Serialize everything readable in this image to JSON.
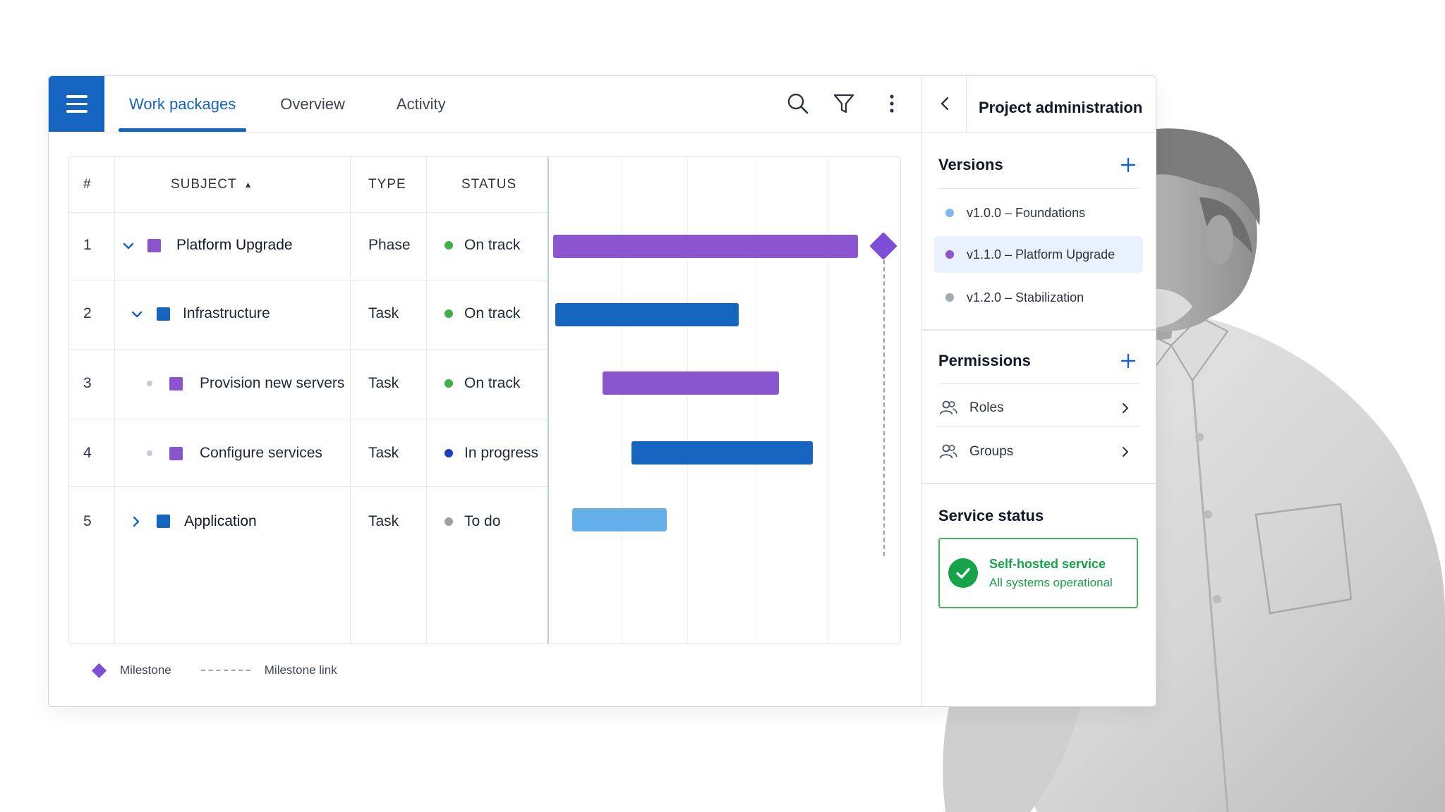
{
  "header": {
    "tabs": [
      {
        "label": "Work packages",
        "active": true
      },
      {
        "label": "Overview",
        "active": false
      },
      {
        "label": "Activity",
        "active": false
      }
    ]
  },
  "table": {
    "columns": {
      "num": "#",
      "subject": "SUBJECT",
      "sort_indicator": "▲",
      "type": "TYPE",
      "status": "STATUS"
    },
    "rows": [
      {
        "num": "1",
        "subject": "Platform Upgrade",
        "type": "Phase",
        "status": "On track",
        "status_color": "#3fb04a",
        "color": "#8a55cf",
        "expander": "expanded"
      },
      {
        "num": "2",
        "subject": "Infrastructure",
        "type": "Task",
        "status": "On track",
        "status_color": "#3fb04a",
        "color": "#1565c0",
        "expander": "expanded"
      },
      {
        "num": "3",
        "subject": "Provision new servers",
        "type": "Task",
        "status": "On track",
        "status_color": "#3fb04a",
        "color": "#8a55cf",
        "expander": "leaf"
      },
      {
        "num": "4",
        "subject": "Configure services",
        "type": "Task",
        "status": "In progress",
        "status_color": "#1a3fbf",
        "color": "#8a55cf",
        "expander": "leaf"
      },
      {
        "num": "5",
        "subject": "Application",
        "type": "Task",
        "status": "To do",
        "status_color": "#9aa1a9",
        "color": "#1565c0",
        "expander": "collapsed"
      }
    ]
  },
  "legend": {
    "milestone": "Milestone",
    "milestone_link": "Milestone link"
  },
  "panel": {
    "title": "Project administration",
    "versions": {
      "title": "Versions",
      "items": [
        {
          "label": "v1.0.0 – Foundations",
          "color": "#7fb9ee",
          "selected": false
        },
        {
          "label": "v1.1.0 – Platform Upgrade",
          "color": "#8a55cf",
          "selected": true
        },
        {
          "label": "v1.2.0 – Stabilization",
          "color": "#a3a9b0",
          "selected": false
        }
      ]
    },
    "permissions": {
      "title": "Permissions",
      "items": [
        {
          "label": "Roles"
        },
        {
          "label": "Groups"
        }
      ]
    },
    "service": {
      "title": "Service status",
      "card_title": "Self-hosted service",
      "card_sub": "All systems operational"
    }
  },
  "colors": {
    "accent": "#1565c0",
    "purple": "#8a55cf",
    "blue": "#1565c0",
    "light_blue": "#63b0ea",
    "success": "#17a34a"
  }
}
